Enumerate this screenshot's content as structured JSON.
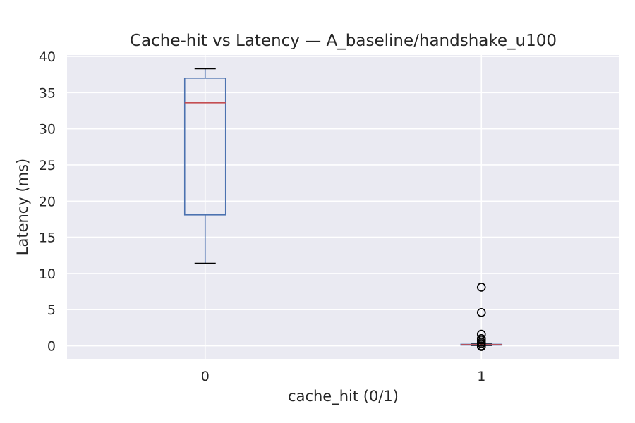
{
  "chart_data": {
    "type": "box",
    "title": "Cache-hit vs Latency — A_baseline/handshake_u100",
    "xlabel": "cache_hit (0/1)",
    "ylabel": "Latency (ms)",
    "categories": [
      "0",
      "1"
    ],
    "ylim": [
      -1.8,
      40.2
    ],
    "yticks": [
      0,
      5,
      10,
      15,
      20,
      25,
      30,
      35,
      40
    ],
    "grid": true,
    "boxes": [
      {
        "category": "0",
        "whisker_low": 11.4,
        "q1": 18.1,
        "median": 33.6,
        "q3": 37.0,
        "whisker_high": 38.3,
        "outliers": []
      },
      {
        "category": "1",
        "whisker_low": 0.05,
        "q1": 0.1,
        "median": 0.15,
        "q3": 0.2,
        "whisker_high": 0.25,
        "outliers": [
          8.1,
          4.6,
          1.6,
          1.0,
          0.8,
          0.5,
          0.3,
          0.0,
          -0.1
        ]
      }
    ],
    "colors": {
      "box": "#4c72b0",
      "median": "#c44e52",
      "whisker_cap": "#000000",
      "background": "#eaeaf2",
      "grid": "#ffffff"
    }
  }
}
